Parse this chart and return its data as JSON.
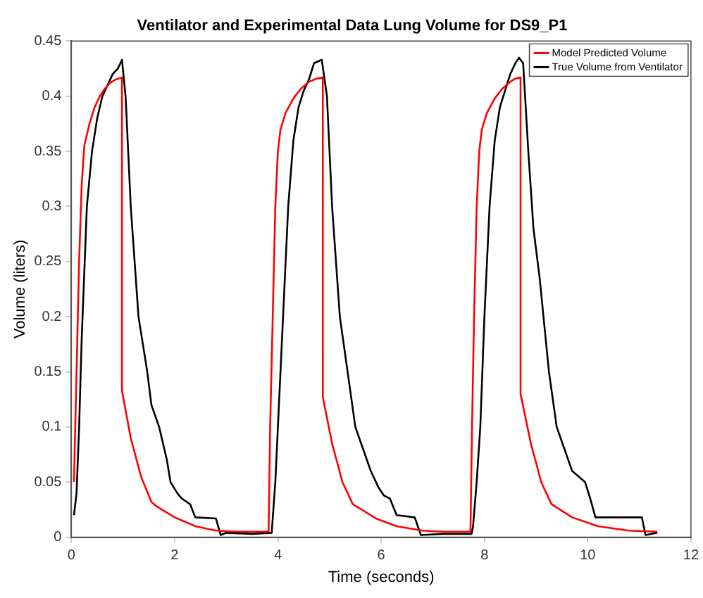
{
  "chart_data": {
    "type": "line",
    "title": "Ventilator and Experimental Data Lung Volume for DS9_P1",
    "xlabel": "Time (seconds)",
    "ylabel": "Volume (liters)",
    "xlim": [
      0,
      12
    ],
    "xticks": [
      0,
      2,
      4,
      6,
      8,
      10,
      12
    ],
    "ylim": [
      0,
      0.45
    ],
    "yticks": [
      0,
      0.05,
      0.1,
      0.15,
      0.2,
      0.25,
      0.3,
      0.35,
      0.4,
      0.45
    ],
    "grid": false,
    "legend": "top right",
    "marker": "none",
    "line_style": "solid",
    "series": [
      {
        "name": "Model Predicted Volume",
        "color": "#ff0000",
        "x": [
          0.05,
          0.1,
          0.15,
          0.2,
          0.25,
          0.35,
          0.45,
          0.55,
          0.65,
          0.75,
          0.85,
          0.98,
          0.98,
          1.15,
          1.35,
          1.55,
          1.65,
          2.0,
          2.4,
          2.8,
          3.2,
          3.82,
          3.85,
          3.9,
          3.95,
          4.0,
          4.05,
          4.15,
          4.3,
          4.45,
          4.6,
          4.75,
          4.87,
          4.87,
          5.05,
          5.25,
          5.45,
          5.9,
          6.3,
          6.8,
          7.2,
          7.73,
          7.76,
          7.8,
          7.85,
          7.9,
          7.95,
          8.05,
          8.2,
          8.35,
          8.5,
          8.6,
          8.7,
          8.7,
          8.9,
          9.1,
          9.3,
          9.7,
          10.2,
          10.8,
          11.35
        ],
        "values": [
          0.05,
          0.15,
          0.25,
          0.32,
          0.355,
          0.375,
          0.39,
          0.4,
          0.407,
          0.412,
          0.415,
          0.417,
          0.133,
          0.09,
          0.055,
          0.032,
          0.028,
          0.018,
          0.01,
          0.006,
          0.005,
          0.005,
          0.1,
          0.2,
          0.3,
          0.35,
          0.37,
          0.385,
          0.398,
          0.407,
          0.413,
          0.416,
          0.417,
          0.127,
          0.085,
          0.05,
          0.03,
          0.017,
          0.01,
          0.006,
          0.005,
          0.005,
          0.1,
          0.2,
          0.3,
          0.35,
          0.37,
          0.385,
          0.398,
          0.407,
          0.413,
          0.416,
          0.417,
          0.13,
          0.085,
          0.05,
          0.03,
          0.018,
          0.01,
          0.006,
          0.005
        ]
      },
      {
        "name": "True Volume from Ventilator",
        "color": "#000000",
        "x": [
          0.05,
          0.1,
          0.15,
          0.2,
          0.3,
          0.4,
          0.5,
          0.6,
          0.7,
          0.8,
          0.9,
          0.98,
          1.05,
          1.15,
          1.3,
          1.47,
          1.55,
          1.7,
          1.85,
          1.92,
          2.05,
          2.14,
          2.3,
          2.4,
          2.8,
          2.89,
          3.0,
          3.5,
          3.88,
          3.95,
          4.0,
          4.1,
          4.2,
          4.3,
          4.4,
          4.5,
          4.6,
          4.7,
          4.85,
          4.95,
          5.05,
          5.2,
          5.35,
          5.5,
          5.65,
          5.8,
          5.95,
          6.05,
          6.17,
          6.3,
          6.65,
          6.77,
          7.2,
          7.75,
          7.78,
          7.85,
          7.92,
          8.0,
          8.1,
          8.2,
          8.3,
          8.4,
          8.5,
          8.6,
          8.67,
          8.75,
          8.85,
          8.95,
          9.07,
          9.25,
          9.4,
          9.55,
          9.7,
          9.95,
          10.05,
          10.15,
          11.05,
          11.12,
          11.35
        ],
        "values": [
          0.02,
          0.04,
          0.1,
          0.18,
          0.3,
          0.35,
          0.38,
          0.4,
          0.41,
          0.42,
          0.425,
          0.433,
          0.4,
          0.3,
          0.2,
          0.15,
          0.12,
          0.1,
          0.07,
          0.05,
          0.04,
          0.035,
          0.03,
          0.018,
          0.017,
          0.002,
          0.004,
          0.003,
          0.004,
          0.05,
          0.1,
          0.2,
          0.3,
          0.36,
          0.39,
          0.405,
          0.415,
          0.43,
          0.433,
          0.4,
          0.3,
          0.2,
          0.15,
          0.1,
          0.08,
          0.06,
          0.045,
          0.038,
          0.035,
          0.02,
          0.018,
          0.002,
          0.003,
          0.003,
          0.01,
          0.05,
          0.1,
          0.2,
          0.3,
          0.36,
          0.39,
          0.405,
          0.42,
          0.43,
          0.435,
          0.43,
          0.35,
          0.28,
          0.235,
          0.15,
          0.1,
          0.08,
          0.06,
          0.05,
          0.035,
          0.018,
          0.018,
          0.002,
          0.004
        ]
      }
    ]
  }
}
